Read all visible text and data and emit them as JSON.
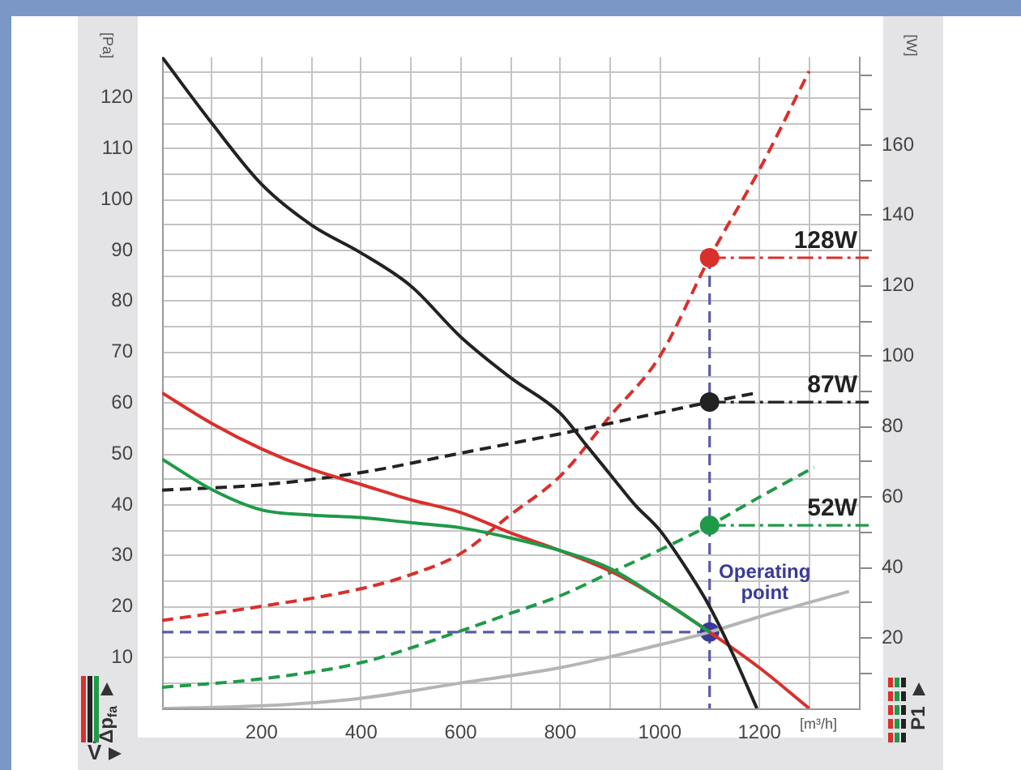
{
  "chart_data": {
    "type": "line",
    "ylabel": "[Pa]",
    "y2label": "[W]",
    "xlabel": "[m³/h]",
    "xlim": [
      0,
      1400
    ],
    "xticks": [
      {
        "value": 100,
        "label": null
      },
      200,
      {
        "value": 300,
        "label": null
      },
      400,
      {
        "value": 500,
        "label": null
      },
      600,
      {
        "value": 700,
        "label": null
      },
      800,
      {
        "value": 900,
        "label": null
      },
      1000,
      {
        "value": 1100,
        "label": null
      },
      1200,
      {
        "value": 1300,
        "label": null
      }
    ],
    "ylim": [
      0,
      128
    ],
    "yticks": [
      {
        "value": 5,
        "label": null
      },
      10,
      {
        "value": 15,
        "label": null
      },
      20,
      {
        "value": 25,
        "label": null
      },
      30,
      {
        "value": 35,
        "label": null
      },
      40,
      {
        "value": 45,
        "label": null
      },
      50,
      {
        "value": 55,
        "label": null
      },
      60,
      {
        "value": 65,
        "label": null
      },
      70,
      {
        "value": 75,
        "label": null
      },
      80,
      {
        "value": 85,
        "label": null
      },
      90,
      {
        "value": 95,
        "label": null
      },
      100,
      {
        "value": 105,
        "label": null
      },
      110,
      {
        "value": 115,
        "label": null
      },
      120,
      {
        "value": 125,
        "label": null
      }
    ],
    "y2lim": [
      0,
      185
    ],
    "y2ticks": [
      {
        "value": 10,
        "label": null
      },
      20,
      {
        "value": 30,
        "label": null
      },
      40,
      {
        "value": 50,
        "label": null
      },
      60,
      {
        "value": 70,
        "label": null
      },
      80,
      {
        "value": 90,
        "label": null
      },
      100,
      {
        "value": 110,
        "label": null
      },
      120,
      {
        "value": 130,
        "label": null
      },
      140,
      {
        "value": 150,
        "label": null
      },
      160,
      {
        "value": 170,
        "label": null
      },
      {
        "value": 180,
        "label": null
      }
    ],
    "grid": true,
    "series": [
      {
        "color": "#222222",
        "line_style": "solid",
        "x": [
          0,
          100,
          200,
          300,
          400,
          500,
          600,
          700,
          800,
          850,
          900,
          950,
          1000,
          1050,
          1100,
          1150,
          1195
        ],
        "values": [
          128,
          115,
          103,
          95,
          89.5,
          83,
          73,
          65,
          58,
          52,
          46,
          40,
          35,
          28,
          20,
          10,
          0
        ]
      },
      {
        "color": "#1f9a48",
        "line_style": "solid",
        "x": [
          0,
          100,
          200,
          300,
          400,
          500,
          600,
          700,
          800,
          900,
          1000,
          1100
        ],
        "values": [
          49,
          43,
          39,
          38,
          37.5,
          36.5,
          35.5,
          33.5,
          31,
          27.5,
          21.5,
          15
        ]
      },
      {
        "color": "#d9302c",
        "line_style": "solid",
        "x": [
          0,
          100,
          200,
          300,
          400,
          500,
          600,
          700,
          800,
          900,
          1000,
          1100,
          1200,
          1300
        ],
        "values": [
          62,
          56,
          51,
          47,
          44,
          41,
          38.5,
          34.5,
          31,
          27,
          21.5,
          15,
          8,
          0
        ]
      },
      {
        "color": "#b5b5b5",
        "line_style": "solid",
        "x": [
          0,
          200,
          400,
          600,
          800,
          1000,
          1100,
          1200,
          1380
        ],
        "values": [
          0,
          0.5,
          2,
          5,
          8,
          12.5,
          15,
          18,
          23
        ]
      },
      {
        "color": "#222222",
        "line_style": "dashed",
        "axis": "y2",
        "x": [
          0,
          200,
          400,
          600,
          800,
          1000,
          1100,
          1190
        ],
        "values": [
          62,
          63.5,
          67,
          72.5,
          78,
          84,
          87,
          89.5
        ]
      },
      {
        "color": "#d9302c",
        "line_style": "dashed",
        "axis": "y2",
        "x": [
          0,
          200,
          400,
          500,
          600,
          700,
          800,
          900,
          1000,
          1100,
          1200,
          1300
        ],
        "values": [
          25,
          29,
          34,
          38,
          44,
          55,
          66,
          83,
          100,
          128,
          153,
          181
        ]
      },
      {
        "color": "#1f9a48",
        "line_style": "dashed",
        "axis": "y2",
        "x": [
          0,
          200,
          400,
          600,
          700,
          800,
          900,
          1000,
          1100,
          1200,
          1310
        ],
        "values": [
          6,
          8.4,
          13,
          22,
          27,
          32,
          38.5,
          45,
          52,
          60,
          68.5
        ]
      },
      {
        "type": "scatter",
        "marker": "circle",
        "color": "#d9302c",
        "axis": "y2",
        "x": [
          1100
        ],
        "values": [
          128
        ]
      },
      {
        "type": "scatter",
        "marker": "circle",
        "color": "#222222",
        "axis": "y2",
        "x": [
          1100
        ],
        "values": [
          87
        ]
      },
      {
        "type": "scatter",
        "marker": "circle",
        "color": "#1f9a48",
        "axis": "y2",
        "x": [
          1100
        ],
        "values": [
          52
        ]
      },
      {
        "type": "scatter",
        "marker": "circle",
        "color": "#3a3a9a",
        "x": [
          1100
        ],
        "values": [
          15
        ]
      }
    ],
    "ref_lines": [
      {
        "axis": "x",
        "value": 1100,
        "color": "#5a5aa8",
        "line_style": "dashed"
      },
      {
        "axis": "y",
        "value": 15,
        "color": "#5a5aa8",
        "line_style": "dashed"
      },
      {
        "axis": "y2",
        "value": 128,
        "label": "128W",
        "color": "#d9302c",
        "line_style": "dashed"
      },
      {
        "axis": "y2",
        "value": 87,
        "label": "87W",
        "color": "#222222",
        "line_style": "dashed"
      },
      {
        "axis": "y2",
        "value": 52,
        "label": "52W",
        "color": "#1f9a48",
        "line_style": "dashed"
      }
    ],
    "annotations": [
      "V̇",
      "Δp$_{fa}$",
      "P1",
      {
        "text": "Operating point",
        "x": 1100,
        "y": 15
      }
    ]
  }
}
